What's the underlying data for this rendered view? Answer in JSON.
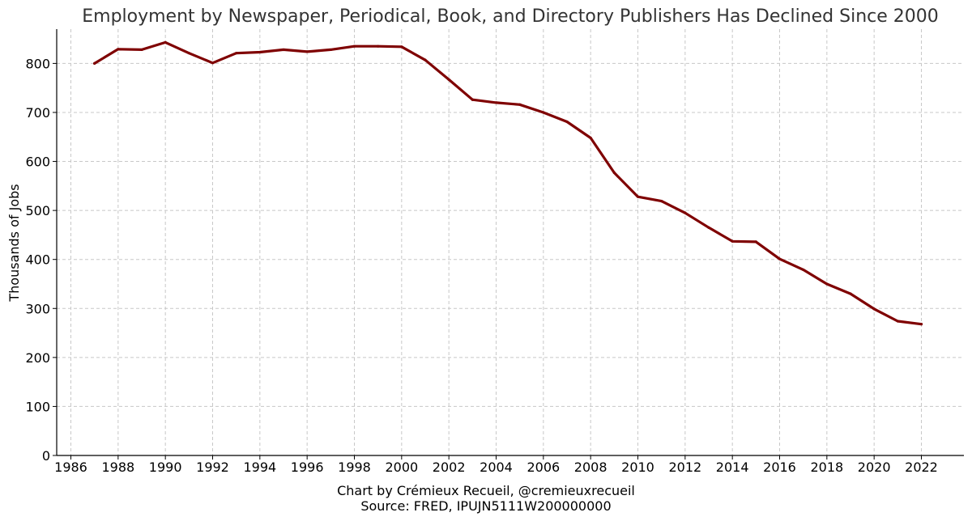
{
  "chart_data": {
    "type": "line",
    "title": "Employment by Newspaper, Periodical, Book, and Directory Publishers Has Declined Since 2000",
    "xlabel": "",
    "ylabel": "Thousands of Jobs",
    "xlim": [
      1985.4,
      2023.8
    ],
    "ylim": [
      0,
      870
    ],
    "xticks": [
      1986,
      1988,
      1990,
      1992,
      1994,
      1996,
      1998,
      2000,
      2002,
      2004,
      2006,
      2008,
      2010,
      2012,
      2014,
      2016,
      2018,
      2020,
      2022
    ],
    "yticks": [
      0,
      100,
      200,
      300,
      400,
      500,
      600,
      700,
      800
    ],
    "grid": true,
    "line_color": "#7f0000",
    "series": [
      {
        "name": "",
        "x": [
          1987,
          1988,
          1989,
          1990,
          1991,
          1992,
          1993,
          1994,
          1995,
          1996,
          1997,
          1998,
          1999,
          2000,
          2001,
          2002,
          2003,
          2004,
          2005,
          2006,
          2007,
          2008,
          2009,
          2010,
          2011,
          2012,
          2013,
          2014,
          2015,
          2016,
          2017,
          2018,
          2019,
          2020,
          2021,
          2022
        ],
        "y": [
          800,
          829,
          828,
          843,
          821,
          801,
          821,
          823,
          828,
          824,
          828,
          835,
          835,
          834,
          807,
          767,
          726,
          720,
          716,
          700,
          681,
          648,
          577,
          528,
          519,
          495,
          465,
          437,
          436,
          401,
          379,
          350,
          330,
          299,
          274,
          268
        ]
      }
    ]
  },
  "caption": {
    "credit": "Chart by Crémieux Recueil, @cremieuxrecueil",
    "source": "Source: FRED, IPUJN5111W200000000"
  }
}
